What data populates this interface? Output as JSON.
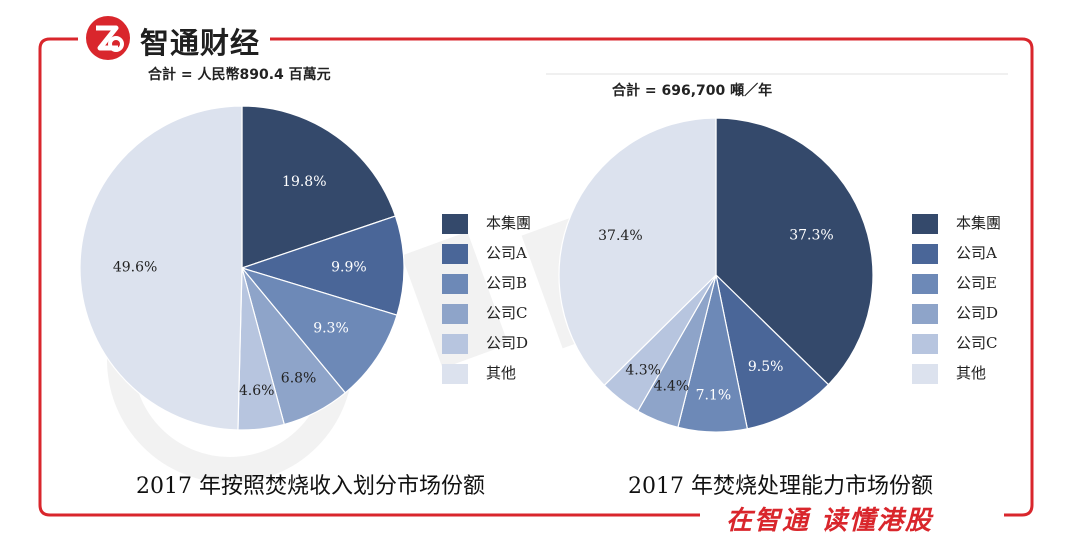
{
  "brand": {
    "name": "智通财经",
    "slogan": "在智通 读懂港股",
    "accent": "#d9262c"
  },
  "charts_meta": {
    "left": {
      "total": "合計 = 人民幣890.4 百萬元",
      "caption": "2017 年按照焚烧收入划分市场份额"
    },
    "right": {
      "total": "合計 = 696,700 噸／年",
      "caption": "2017 年焚烧处理能力市场份额"
    }
  },
  "colors": [
    "#34496b",
    "#4a6698",
    "#6d89b7",
    "#8ea4c9",
    "#b7c5df",
    "#dce2ee"
  ],
  "chart_data": [
    {
      "type": "pie",
      "title": "2017 年按照焚烧收入划分市场份额",
      "subtitle": "合計 = 人民幣890.4 百萬元",
      "categories": [
        "本集團",
        "公司A",
        "公司B",
        "公司C",
        "公司D",
        "其他"
      ],
      "values": [
        19.8,
        9.9,
        9.3,
        6.8,
        4.6,
        49.6
      ],
      "labels": [
        "19.8%",
        "9.9%",
        "9.3%",
        "6.8%",
        "4.6%",
        "49.6%"
      ],
      "legend_position": "right"
    },
    {
      "type": "pie",
      "title": "2017 年焚烧处理能力市场份额",
      "subtitle": "合計 = 696,700 噸／年",
      "categories": [
        "本集團",
        "公司A",
        "公司E",
        "公司D",
        "公司C",
        "其他"
      ],
      "values": [
        37.3,
        9.5,
        7.1,
        4.4,
        4.3,
        37.4
      ],
      "labels": [
        "37.3%",
        "9.5%",
        "7.1%",
        "4.4%",
        "4.3%",
        "37.4%"
      ],
      "legend_position": "right"
    }
  ]
}
